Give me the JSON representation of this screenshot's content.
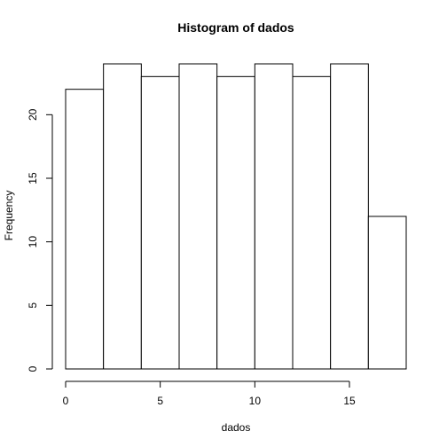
{
  "chart_data": {
    "type": "bar",
    "title": "Histogram of dados",
    "xlabel": "dados",
    "ylabel": "Frequency",
    "bins": [
      {
        "start": 0,
        "end": 2,
        "value": 22
      },
      {
        "start": 2,
        "end": 4,
        "value": 24
      },
      {
        "start": 4,
        "end": 6,
        "value": 23
      },
      {
        "start": 6,
        "end": 8,
        "value": 24
      },
      {
        "start": 8,
        "end": 10,
        "value": 23
      },
      {
        "start": 10,
        "end": 12,
        "value": 24
      },
      {
        "start": 12,
        "end": 14,
        "value": 23
      },
      {
        "start": 14,
        "end": 16,
        "value": 24
      },
      {
        "start": 16,
        "end": 18,
        "value": 12
      }
    ],
    "x_ticks": [
      "0",
      "5",
      "10",
      "15"
    ],
    "y_ticks": [
      "0",
      "5",
      "10",
      "15",
      "20"
    ],
    "xlim": [
      0,
      18
    ],
    "ylim": [
      0,
      24
    ],
    "grid": false,
    "legend": "none",
    "bar_fill": "#ffffff",
    "bar_stroke": "#000000"
  }
}
